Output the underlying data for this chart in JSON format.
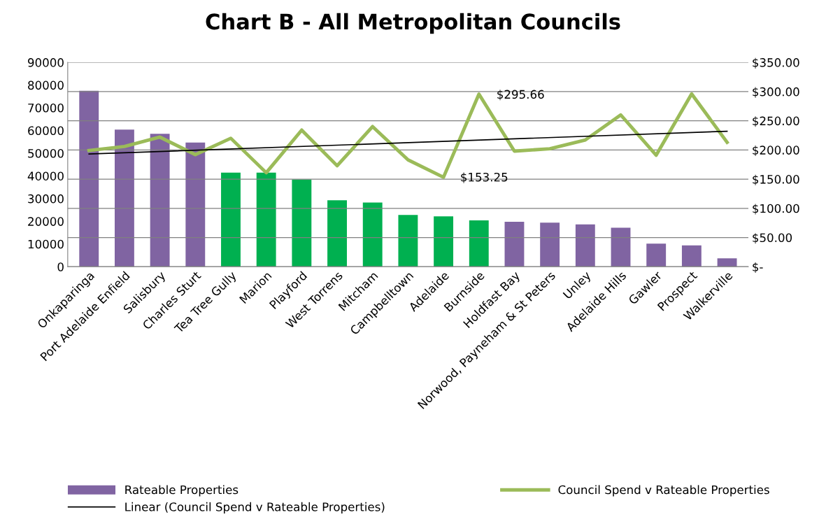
{
  "chart_data": {
    "type": "bar",
    "title": "Chart B - All Metropolitan Councils",
    "categories": [
      "Onkaparinga",
      "Port Adelaide Enfield",
      "Salisbury",
      "Charles Sturt",
      "Tea Tree Gully",
      "Marion",
      "Playford",
      "West Torrens",
      "Mitcham",
      "Campbelltown",
      "Adelaide",
      "Burnside",
      "Holdfast Bay",
      "Norwood, Payneham & St Peters",
      "Unley",
      "Adelaide Hills",
      "Gawler",
      "Prospect",
      "Walkerville"
    ],
    "series": [
      {
        "name": "Rateable Properties",
        "color": "#8064a2",
        "colors": [
          "#8064a2",
          "#8064a2",
          "#8064a2",
          "#8064a2",
          "#00b050",
          "#00b050",
          "#00b050",
          "#00b050",
          "#00b050",
          "#00b050",
          "#00b050",
          "#00b050",
          "#8064a2",
          "#8064a2",
          "#8064a2",
          "#8064a2",
          "#8064a2",
          "#8064a2",
          "#8064a2"
        ],
        "values": [
          77500,
          60400,
          58500,
          54700,
          41400,
          41400,
          38400,
          29300,
          28300,
          22800,
          22200,
          20400,
          19800,
          19400,
          18600,
          17200,
          10200,
          9400,
          3700
        ]
      },
      {
        "name": "Council Spend v Rateable Properties",
        "type": "line",
        "axis": "y2",
        "color": "#9bbb59",
        "values": [
          199,
          206,
          222,
          192,
          220,
          161,
          234,
          173,
          240,
          183,
          153.25,
          295.66,
          198,
          202,
          217,
          260,
          191,
          296,
          213
        ]
      },
      {
        "name": "Linear (Council Spend v Rateable Properties)",
        "type": "line",
        "axis": "y2",
        "color": "#000000",
        "x": [
          "Onkaparinga",
          "Walkerville"
        ],
        "values": [
          193,
          232
        ]
      }
    ],
    "ylim": [
      0,
      90000
    ],
    "yticks": [
      0,
      10000,
      20000,
      30000,
      40000,
      50000,
      60000,
      70000,
      80000,
      90000
    ],
    "y2lim": [
      0,
      350
    ],
    "y2ticks": [
      {
        "value": 0,
        "label": "$-"
      },
      {
        "value": 50,
        "label": "$50.00"
      },
      {
        "value": 100,
        "label": "$100.00"
      },
      {
        "value": 150,
        "label": "$150.00"
      },
      {
        "value": 200,
        "label": "$200.00"
      },
      {
        "value": 250,
        "label": "$250.00"
      },
      {
        "value": 300,
        "label": "$300.00"
      },
      {
        "value": 350,
        "label": "$350.00"
      }
    ],
    "annotations": [
      "$295.66",
      "$153.25"
    ],
    "grid": true,
    "legend": "bottom"
  }
}
